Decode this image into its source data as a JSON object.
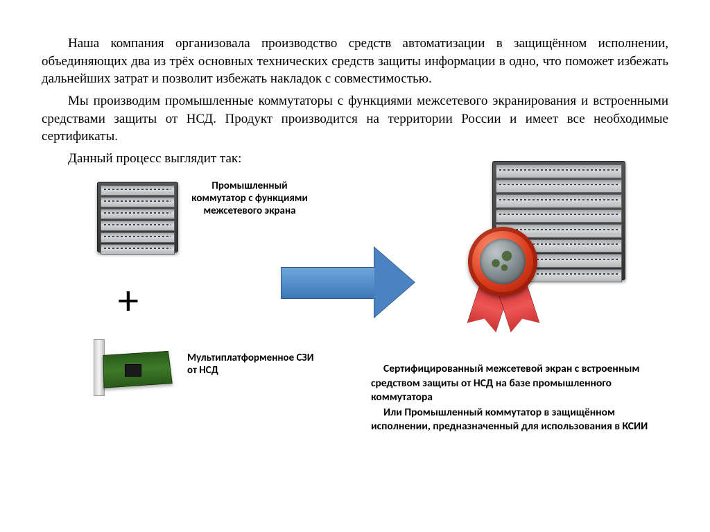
{
  "paragraphs": {
    "p1": "Наша компания организовала производство средств автоматизации в защищённом исполнении, объединяющих два из трёх основных технических средств защиты информации в одно, что поможет избежать дальнейших затрат и позволит избежать накладок с совместимостью.",
    "p2": "Мы производим промышленные коммутаторы с функциями межсетевого экранирования и встроенными средствами защиты от НСД. Продукт производится на территории России и имеет все необходимые сертификаты.",
    "p3": "Данный процесс выглядит так:"
  },
  "diagram": {
    "switch_label": "Промышленный коммутатор с функциями межсетевого экрана",
    "plus_symbol": "+",
    "nic_label": "Мультиплатформенное СЗИ от НСД",
    "result_line1": "Сертифицированный межсетевой экран с встроенным средством защиты от НСД на базе промышленного коммутатора",
    "result_line2": "Или Промышленный коммутатор в защищённом исполнении, предназначенный для использования в КСИИ",
    "arrow_color_top": "#6ea6db",
    "arrow_color_bottom": "#3e78b8",
    "arrow_border": "#2b5a8d",
    "seal_red": "#d63a1a",
    "seal_ribbon": "#cc3333",
    "background": "#ffffff"
  }
}
